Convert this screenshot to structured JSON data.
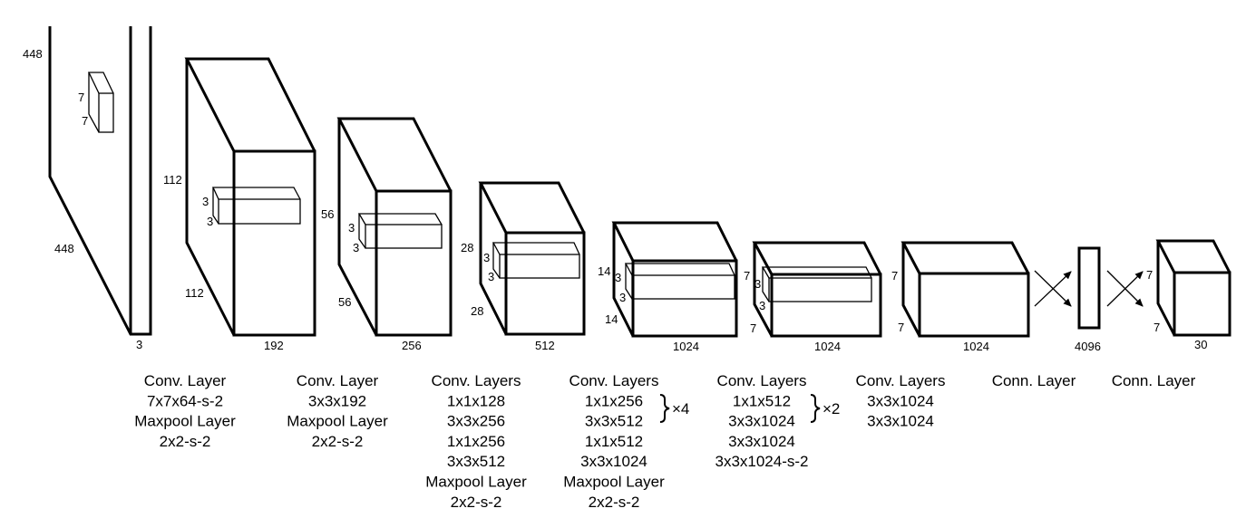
{
  "layers": [
    {
      "dims": {
        "h": "448",
        "w": "448",
        "c": "3",
        "kh": "7",
        "kw": "7"
      }
    },
    {
      "dims": {
        "h": "112",
        "w": "112",
        "c": "192",
        "kh": "3",
        "kw": "3"
      }
    },
    {
      "dims": {
        "h": "56",
        "w": "56",
        "c": "256",
        "kh": "3",
        "kw": "3"
      }
    },
    {
      "dims": {
        "h": "28",
        "w": "28",
        "c": "512",
        "kh": "3",
        "kw": "3"
      }
    },
    {
      "dims": {
        "h": "14",
        "w": "14",
        "c": "1024",
        "kh": "3",
        "kw": "3"
      }
    },
    {
      "dims": {
        "h": "7",
        "w": "7",
        "c": "1024",
        "kh": "3",
        "kw": "3"
      }
    },
    {
      "dims": {
        "h": "7",
        "w": "7",
        "c": "1024"
      }
    },
    {
      "dims": {
        "c": "4096"
      }
    },
    {
      "dims": {
        "h": "7",
        "w": "7",
        "c": "30"
      }
    }
  ],
  "captions": [
    [
      "Conv. Layer",
      "7x7x64-s-2",
      "Maxpool Layer",
      "2x2-s-2"
    ],
    [
      "Conv. Layer",
      "3x3x192",
      "Maxpool Layer",
      "2x2-s-2"
    ],
    [
      "Conv. Layers",
      "1x1x128",
      "3x3x256",
      "1x1x256",
      "3x3x512",
      "Maxpool Layer",
      "2x2-s-2"
    ],
    [
      "Conv. Layers",
      "1x1x256",
      "3x3x512",
      "1x1x512",
      "3x3x1024",
      "Maxpool Layer",
      "2x2-s-2"
    ],
    [
      "Conv. Layers",
      "1x1x512",
      "3x3x1024",
      "3x3x1024",
      "3x3x1024-s-2"
    ],
    [
      "Conv. Layers",
      "3x3x1024",
      "3x3x1024"
    ],
    [
      "Conn. Layer"
    ],
    [
      "Conn. Layer"
    ]
  ],
  "repeats": [
    "×4",
    "×2"
  ]
}
